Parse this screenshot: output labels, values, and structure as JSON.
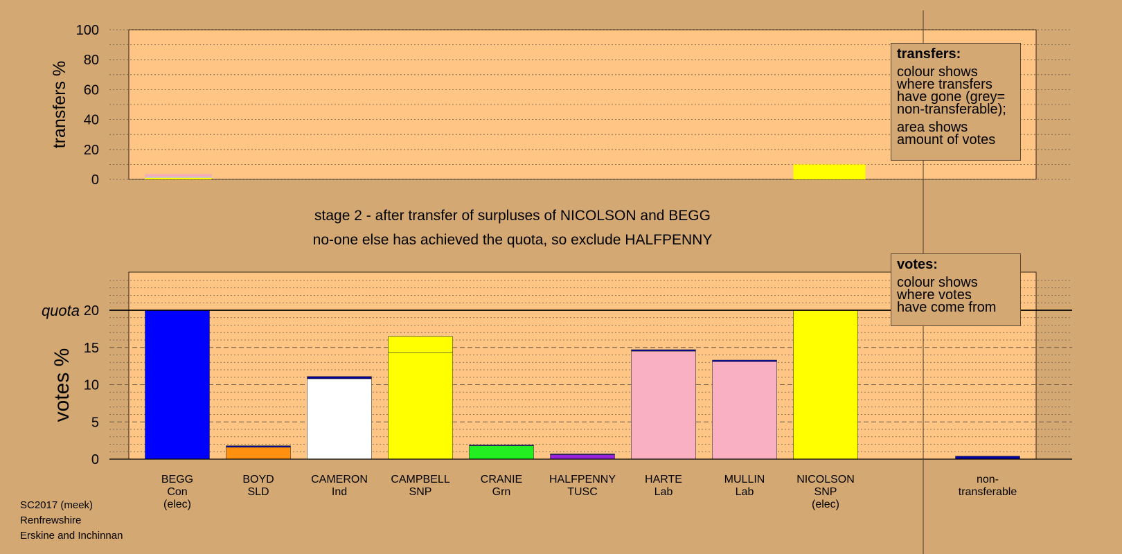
{
  "chart_data": [
    {
      "type": "bar",
      "panel": "transfers",
      "ylabel": "transfers %",
      "ylim": [
        0,
        100
      ],
      "yticks": [
        0,
        20,
        40,
        60,
        80,
        100
      ],
      "grid": "dotted",
      "categories": [
        "BEGG",
        "BOYD",
        "CAMERON",
        "CAMPBELL",
        "CRANIE",
        "HALFPENNY",
        "HARTE",
        "MULLIN",
        "NICOLSON",
        "non-transferable"
      ],
      "bars": [
        {
          "category": "BEGG",
          "segments": [
            {
              "value": 1.0,
              "color": "#ffff00"
            },
            {
              "value": 1.0,
              "color": "#c8c8c8"
            },
            {
              "value": 1.5,
              "color": "#f4a9bc"
            }
          ]
        },
        {
          "category": "NICOLSON",
          "segments": [
            {
              "value": 10.0,
              "color": "#ffff00"
            }
          ]
        }
      ]
    },
    {
      "type": "bar",
      "panel": "votes",
      "ylabel": "votes %",
      "ylim": [
        0,
        20
      ],
      "yticks": [
        0,
        5,
        10,
        15,
        20
      ],
      "quota": 20,
      "quota_label": "quota",
      "grid": "dotted",
      "categories": [
        "BEGG",
        "BOYD",
        "CAMERON",
        "CAMPBELL",
        "CRANIE",
        "HALFPENNY",
        "HARTE",
        "MULLIN",
        "NICOLSON",
        "non-transferable"
      ],
      "bars": [
        {
          "category": "BEGG",
          "segments": [
            {
              "value": 20.0,
              "color": "#0000ff"
            }
          ]
        },
        {
          "category": "BOYD",
          "segments": [
            {
              "value": 1.6,
              "color": "#ff9010"
            },
            {
              "value": 0.2,
              "color": "#0000a0"
            }
          ]
        },
        {
          "category": "CAMERON",
          "segments": [
            {
              "value": 10.8,
              "color": "#ffffff"
            },
            {
              "value": 0.3,
              "color": "#0000a0"
            }
          ]
        },
        {
          "category": "CAMPBELL",
          "segments": [
            {
              "value": 14.3,
              "color": "#ffff00"
            },
            {
              "value": 2.2,
              "color": "#ffff00"
            }
          ]
        },
        {
          "category": "CRANIE",
          "segments": [
            {
              "value": 1.8,
              "color": "#22ee22"
            },
            {
              "value": 0.1,
              "color": "#0000a0"
            }
          ]
        },
        {
          "category": "HALFPENNY",
          "segments": [
            {
              "value": 0.6,
              "color": "#9922dd"
            },
            {
              "value": 0.1,
              "color": "#0000a0"
            }
          ]
        },
        {
          "category": "HARTE",
          "segments": [
            {
              "value": 14.5,
              "color": "#f9b0c3"
            },
            {
              "value": 0.2,
              "color": "#0000a0"
            }
          ]
        },
        {
          "category": "MULLIN",
          "segments": [
            {
              "value": 13.1,
              "color": "#f9b0c3"
            },
            {
              "value": 0.2,
              "color": "#0000a0"
            }
          ]
        },
        {
          "category": "NICOLSON",
          "segments": [
            {
              "value": 20.0,
              "color": "#ffff00"
            }
          ]
        },
        {
          "category": "non-transferable",
          "segments": [
            {
              "value": 0.4,
              "color": "#0000a0"
            }
          ]
        }
      ]
    }
  ],
  "candidates": [
    {
      "lines": [
        "BEGG",
        "Con",
        "(elec)"
      ]
    },
    {
      "lines": [
        "BOYD",
        "SLD"
      ]
    },
    {
      "lines": [
        "CAMERON",
        "Ind"
      ]
    },
    {
      "lines": [
        "CAMPBELL",
        "SNP"
      ]
    },
    {
      "lines": [
        "CRANIE",
        "Grn"
      ]
    },
    {
      "lines": [
        "HALFPENNY",
        "TUSC"
      ]
    },
    {
      "lines": [
        "HARTE",
        "Lab"
      ]
    },
    {
      "lines": [
        "MULLIN",
        "Lab"
      ]
    },
    {
      "lines": [
        "NICOLSON",
        "SNP",
        "(elec)"
      ]
    },
    {
      "lines": [
        "non-",
        "transferable"
      ]
    }
  ],
  "stage": {
    "line1": "stage 2 - after transfer of surpluses of NICOLSON and BEGG",
    "line2": "no-one else has achieved the quota, so exclude HALFPENNY"
  },
  "transfers_legend": {
    "title": "transfers:",
    "lines1": [
      "colour shows",
      "where transfers",
      "have gone (grey=",
      "non-transferable);"
    ],
    "lines2": [
      "area shows",
      "amount of votes"
    ]
  },
  "votes_legend": {
    "title": "votes:",
    "lines1": [
      "colour shows",
      "where votes",
      "have come from"
    ]
  },
  "footer": {
    "line1": "SC2017 (meek)",
    "line2": "Renfrewshire",
    "line3": "Erskine and Inchinnan"
  },
  "colors": {
    "background": "#d4a873",
    "plot_area": "#ffc584"
  }
}
